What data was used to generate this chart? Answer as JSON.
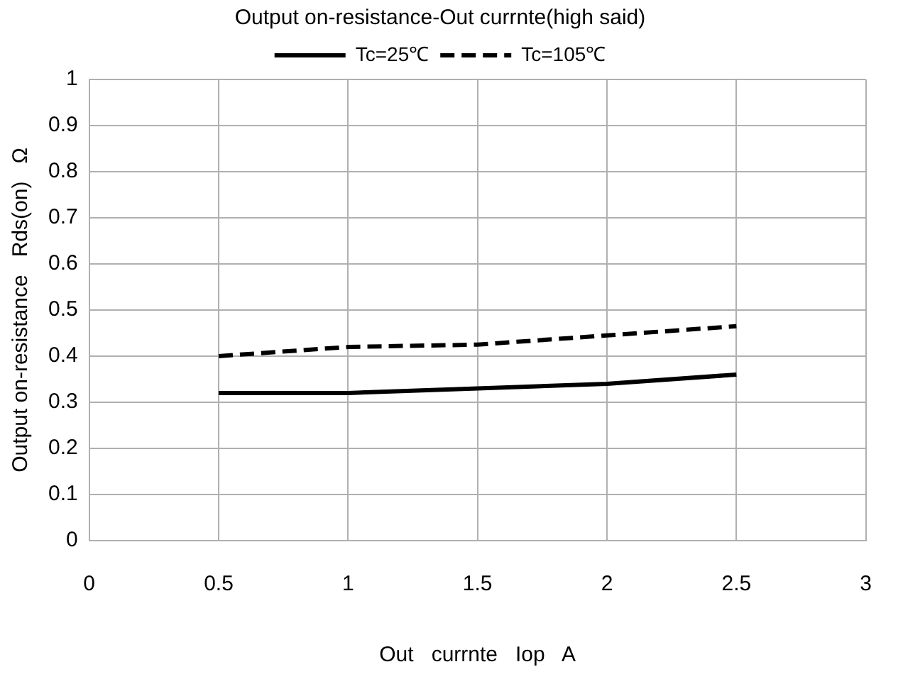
{
  "chart_data": {
    "type": "line",
    "title": "Output on-resistance-Out currnte(high said)",
    "xlabel": "Out   currnte   Iop   A",
    "ylabel": "Output on-resistance   Rds(on)   Ω",
    "x": [
      0.5,
      1,
      1.5,
      2,
      2.5
    ],
    "series": [
      {
        "name": "Tc=25℃",
        "color": "#000000",
        "line_style": "solid",
        "values": [
          0.32,
          0.32,
          0.33,
          0.34,
          0.36
        ]
      },
      {
        "name": "Tc=105℃",
        "color": "#000000",
        "line_style": "dashed",
        "values": [
          0.4,
          0.42,
          0.425,
          0.445,
          0.465
        ]
      }
    ],
    "xlim": [
      0,
      3
    ],
    "xticks": [
      0,
      0.5,
      1,
      1.5,
      2,
      2.5,
      3
    ],
    "ylim": [
      0,
      1
    ],
    "yticks": [
      0,
      0.1,
      0.2,
      0.3,
      0.4,
      0.5,
      0.6,
      0.7,
      0.8,
      0.9,
      1
    ],
    "grid": true,
    "legend": "top",
    "marker": "none"
  }
}
